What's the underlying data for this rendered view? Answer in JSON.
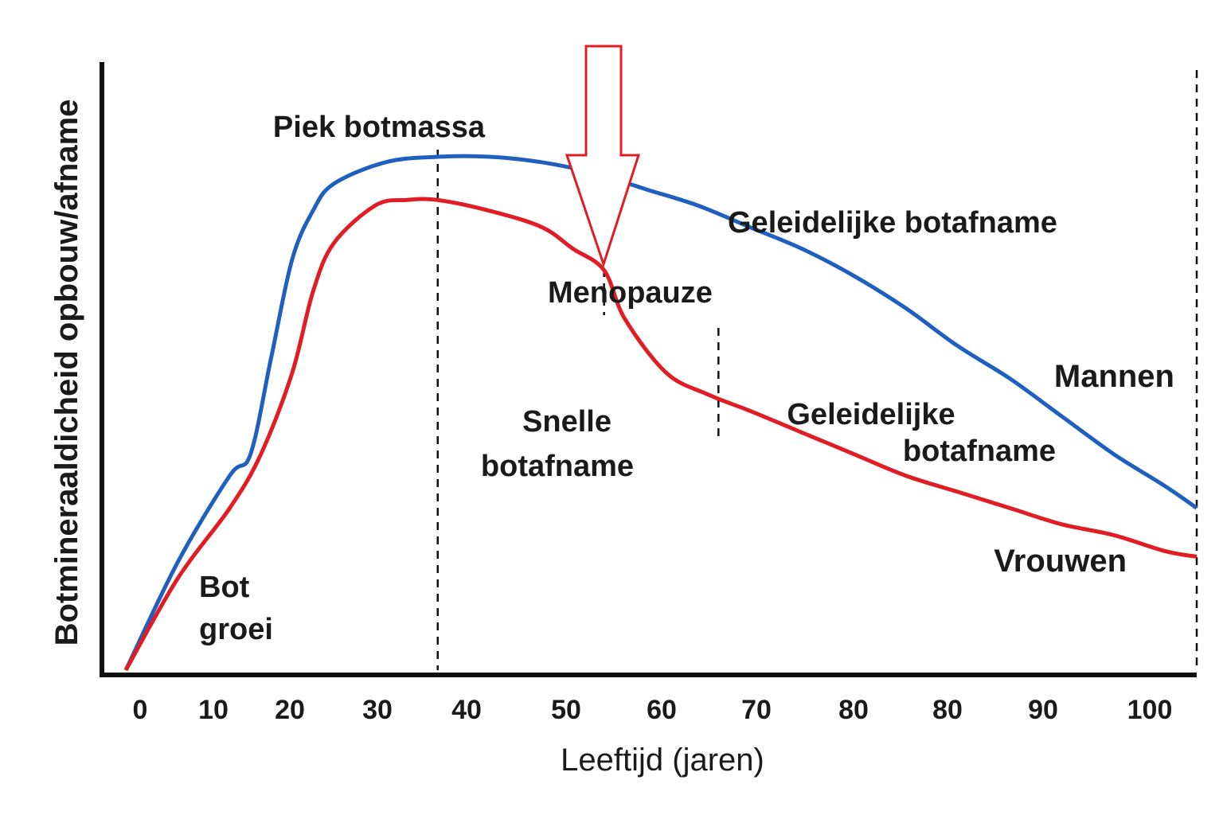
{
  "chart_data": {
    "type": "line",
    "xlabel": "Leeftijd (jaren)",
    "ylabel": "Botmineraaldicheid opbouw/afname",
    "x_tick_labels": [
      "0",
      "10",
      "20",
      "30",
      "40",
      "50",
      "60",
      "70",
      "80",
      "80",
      "90",
      "100"
    ],
    "grid": false,
    "series": [
      {
        "name": "Mannen",
        "color": "#1f5fbf",
        "label_color": "#0a2a99",
        "points": [
          [
            0,
            0
          ],
          [
            5,
            20
          ],
          [
            10,
            36
          ],
          [
            12,
            40
          ],
          [
            14,
            58
          ],
          [
            16,
            76
          ],
          [
            18,
            85
          ],
          [
            20,
            90
          ],
          [
            25,
            94
          ],
          [
            30,
            95
          ],
          [
            35,
            95
          ],
          [
            40,
            94
          ],
          [
            45,
            92
          ],
          [
            50,
            89
          ],
          [
            55,
            86
          ],
          [
            60,
            82
          ],
          [
            65,
            78
          ],
          [
            70,
            73
          ],
          [
            75,
            67
          ],
          [
            80,
            60
          ],
          [
            85,
            54
          ],
          [
            90,
            47
          ],
          [
            95,
            40
          ],
          [
            100,
            34
          ],
          [
            103,
            30
          ]
        ]
      },
      {
        "name": "Vrouwen",
        "color": "#e01c24",
        "label_color": "#e01c24",
        "points": [
          [
            0,
            0
          ],
          [
            5,
            17
          ],
          [
            10,
            30
          ],
          [
            13,
            40
          ],
          [
            16,
            55
          ],
          [
            18,
            70
          ],
          [
            20,
            79
          ],
          [
            24,
            86
          ],
          [
            27,
            87
          ],
          [
            30,
            87
          ],
          [
            35,
            85
          ],
          [
            40,
            82
          ],
          [
            43,
            78
          ],
          [
            46,
            74
          ],
          [
            48,
            65
          ],
          [
            52,
            55
          ],
          [
            56,
            51
          ],
          [
            60,
            48
          ],
          [
            65,
            44
          ],
          [
            70,
            40
          ],
          [
            75,
            36
          ],
          [
            80,
            33
          ],
          [
            85,
            30
          ],
          [
            90,
            27
          ],
          [
            95,
            25
          ],
          [
            100,
            22
          ],
          [
            103,
            21
          ]
        ]
      }
    ],
    "reference_lines": [
      {
        "x": 30,
        "label": "Piek botmassa"
      },
      {
        "x": 46,
        "label": "Menopauze"
      },
      {
        "x": 57
      },
      {
        "x": 103
      }
    ],
    "annotations": {
      "bone_growth": [
        "Bot",
        "groei"
      ],
      "peak": "Piek botmassa",
      "menopause": "Menopauze",
      "fast_loss": [
        "Snelle",
        "botafname"
      ],
      "gradual_loss_men": "Geleidelijke botafname",
      "gradual_loss_women": [
        "Geleidelijke",
        "botafname"
      ]
    },
    "arrow": {
      "x": 53,
      "color": "#e01c24",
      "direction": "down"
    }
  }
}
